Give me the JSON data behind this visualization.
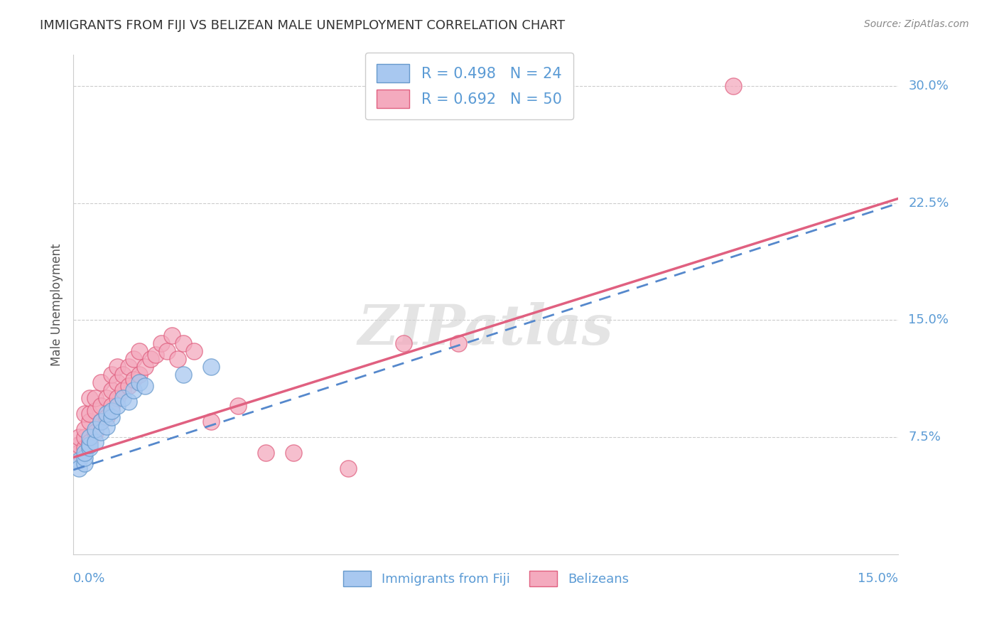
{
  "title": "IMMIGRANTS FROM FIJI VS BELIZEAN MALE UNEMPLOYMENT CORRELATION CHART",
  "source": "Source: ZipAtlas.com",
  "ylabel": "Male Unemployment",
  "x_min": 0.0,
  "x_max": 0.15,
  "y_min": 0.0,
  "y_max": 0.32,
  "legend_fiji_R": "R = 0.498",
  "legend_fiji_N": "N = 24",
  "legend_belize_R": "R = 0.692",
  "legend_belize_N": "N = 50",
  "fiji_color": "#A8C8F0",
  "fiji_color_edge": "#6699CC",
  "belize_color": "#F4AABE",
  "belize_color_edge": "#E06080",
  "fiji_line_color": "#5588CC",
  "belize_line_color": "#E06080",
  "fiji_scatter_x": [
    0.001,
    0.001,
    0.002,
    0.002,
    0.002,
    0.003,
    0.003,
    0.003,
    0.004,
    0.004,
    0.005,
    0.005,
    0.006,
    0.006,
    0.007,
    0.007,
    0.008,
    0.009,
    0.01,
    0.011,
    0.012,
    0.013,
    0.02,
    0.025
  ],
  "fiji_scatter_y": [
    0.06,
    0.055,
    0.058,
    0.062,
    0.065,
    0.068,
    0.07,
    0.075,
    0.072,
    0.08,
    0.078,
    0.085,
    0.082,
    0.09,
    0.088,
    0.092,
    0.095,
    0.1,
    0.098,
    0.105,
    0.11,
    0.108,
    0.115,
    0.12
  ],
  "belize_scatter_x": [
    0.001,
    0.001,
    0.001,
    0.002,
    0.002,
    0.002,
    0.002,
    0.003,
    0.003,
    0.003,
    0.003,
    0.004,
    0.004,
    0.004,
    0.005,
    0.005,
    0.005,
    0.006,
    0.006,
    0.007,
    0.007,
    0.007,
    0.008,
    0.008,
    0.008,
    0.009,
    0.009,
    0.01,
    0.01,
    0.011,
    0.011,
    0.012,
    0.012,
    0.013,
    0.014,
    0.015,
    0.016,
    0.017,
    0.018,
    0.019,
    0.02,
    0.022,
    0.025,
    0.03,
    0.035,
    0.04,
    0.05,
    0.06,
    0.07,
    0.12
  ],
  "belize_scatter_y": [
    0.065,
    0.07,
    0.075,
    0.068,
    0.075,
    0.08,
    0.09,
    0.072,
    0.085,
    0.09,
    0.1,
    0.078,
    0.092,
    0.1,
    0.085,
    0.095,
    0.11,
    0.088,
    0.1,
    0.095,
    0.105,
    0.115,
    0.1,
    0.11,
    0.12,
    0.105,
    0.115,
    0.108,
    0.12,
    0.112,
    0.125,
    0.115,
    0.13,
    0.12,
    0.125,
    0.128,
    0.135,
    0.13,
    0.14,
    0.125,
    0.135,
    0.13,
    0.085,
    0.095,
    0.065,
    0.065,
    0.055,
    0.135,
    0.135,
    0.3
  ],
  "fiji_line_x0": 0.0,
  "fiji_line_y0": 0.054,
  "fiji_line_x1": 0.15,
  "fiji_line_y1": 0.225,
  "belize_line_x0": 0.0,
  "belize_line_y0": 0.062,
  "belize_line_x1": 0.15,
  "belize_line_y1": 0.228,
  "watermark": "ZIPatlas",
  "background_color": "#FFFFFF",
  "grid_color": "#CCCCCC",
  "tick_color": "#5B9BD5",
  "title_color": "#333333"
}
